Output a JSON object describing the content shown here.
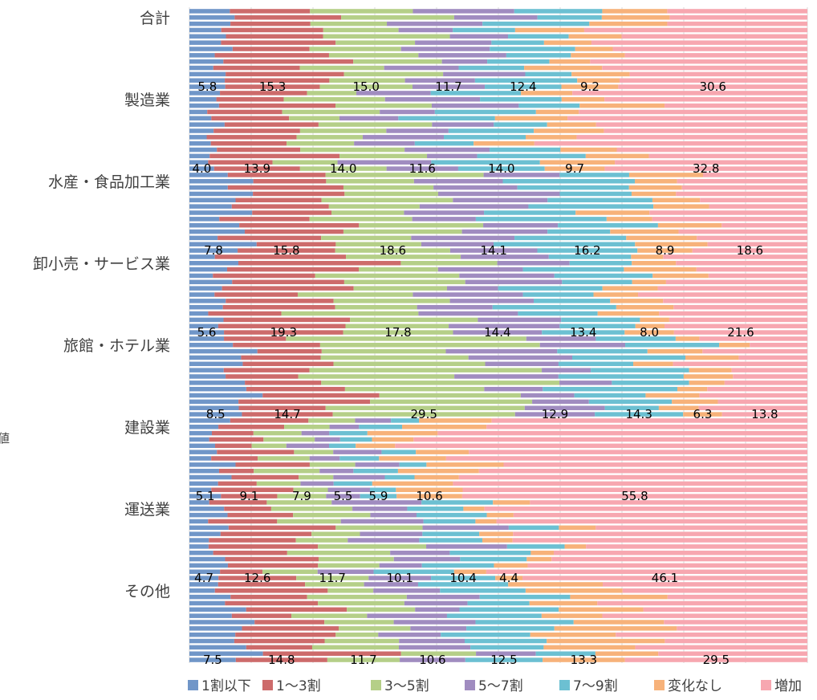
{
  "chart_data": {
    "type": "bar",
    "orientation": "horizontal",
    "stacked": "percent",
    "grid": true,
    "legend_position": "bottom",
    "edge_fragment": "値",
    "categories": [
      "合計",
      "製造業",
      "水産・食品加工業",
      "卸小売・サービス業",
      "旅館・ホテル業",
      "建設業",
      "運送業",
      "その他"
    ],
    "series": [
      {
        "name": "1割以下",
        "color": "#7096c8",
        "values": [
          5.8,
          4.0,
          7.8,
          5.6,
          8.5,
          5.1,
          4.7,
          7.5
        ]
      },
      {
        "name": "1〜3割",
        "color": "#cd6b6b",
        "values": [
          15.3,
          13.9,
          15.8,
          19.3,
          14.7,
          9.1,
          12.6,
          14.8
        ]
      },
      {
        "name": "3〜5割",
        "color": "#b5cf88",
        "values": [
          15.0,
          14.0,
          18.6,
          17.8,
          29.5,
          7.9,
          11.7,
          11.7
        ]
      },
      {
        "name": "5〜7割",
        "color": "#a08cc0",
        "values": [
          11.7,
          11.6,
          14.1,
          14.4,
          12.9,
          5.5,
          10.1,
          10.6
        ]
      },
      {
        "name": "7〜9割",
        "color": "#6cc0d2",
        "values": [
          12.4,
          14.0,
          16.2,
          13.4,
          14.3,
          5.9,
          10.4,
          12.5
        ]
      },
      {
        "name": "変化なし",
        "color": "#f7b27a",
        "values": [
          9.2,
          9.7,
          8.9,
          8.0,
          6.3,
          10.6,
          4.4,
          13.3
        ]
      },
      {
        "name": "増加",
        "color": "#f7a7b0",
        "values": [
          30.6,
          32.8,
          18.6,
          21.6,
          13.8,
          55.8,
          46.1,
          29.5
        ]
      }
    ]
  }
}
